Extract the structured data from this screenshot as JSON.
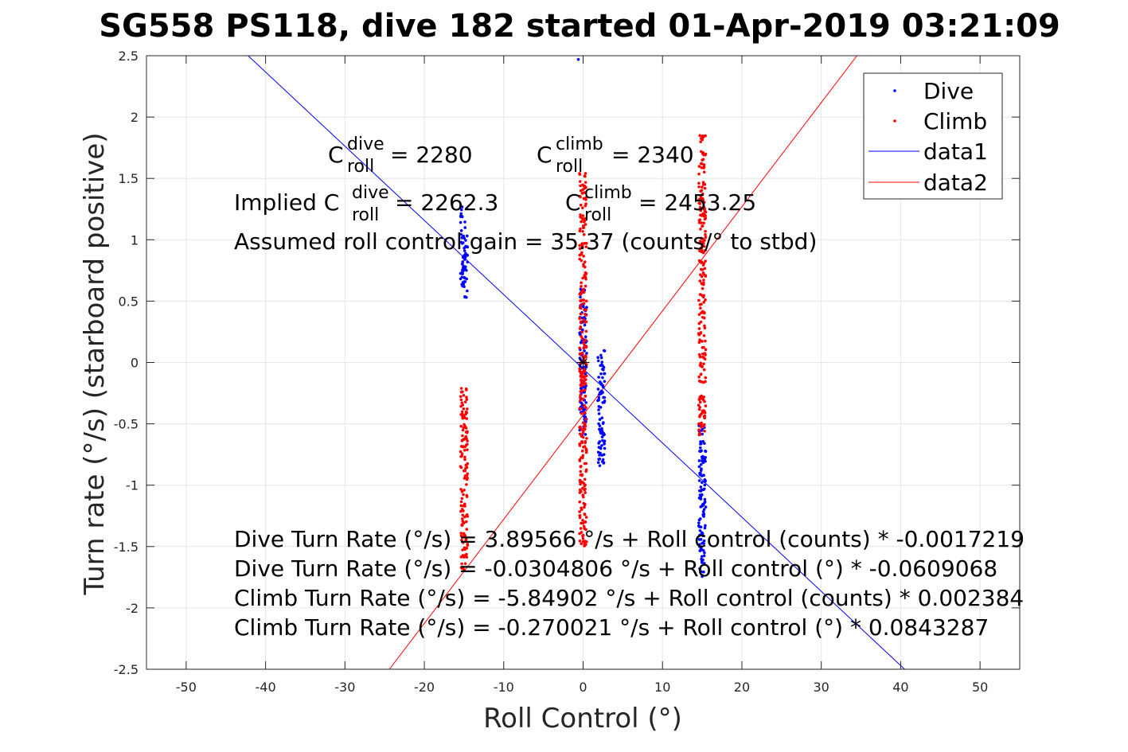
{
  "chart_data": {
    "type": "scatter",
    "title": "SG558 PS118, dive 182 started 01-Apr-2019 03:21:09",
    "xlabel": "Roll Control (°)",
    "ylabel": "Turn rate (°/s) (starboard positive)",
    "xlim": [
      -55,
      55
    ],
    "ylim": [
      -2.5,
      2.5
    ],
    "xticks": [
      "-50",
      "-40",
      "-30",
      "-20",
      "-10",
      "0",
      "10",
      "20",
      "30",
      "40",
      "50"
    ],
    "yticks": [
      "2.5",
      "2",
      "1.5",
      "1",
      "0.5",
      "0",
      "-0.5",
      "-1",
      "-1.5",
      "-2",
      "-2.5"
    ],
    "grid": true,
    "legend": {
      "placement": "top-right",
      "entries": [
        "Dive",
        "Climb",
        "data1",
        "data2"
      ]
    },
    "colors": {
      "dive": "#0000ff",
      "climb": "#ff0000",
      "axis": "#262626",
      "grid": "#e6e6e6"
    },
    "series": [
      {
        "name": "Dive",
        "kind": "points",
        "clusters": [
          {
            "x": -15,
            "y_min": 0.5,
            "y_max": 1.28
          },
          {
            "x": 0,
            "y_min": -0.6,
            "y_max": 0.6
          },
          {
            "x": 2.3,
            "y_min": -0.85,
            "y_max": 0.1
          },
          {
            "x": 15,
            "y_min": -1.75,
            "y_max": -0.5
          }
        ],
        "outliers": [
          [
            -0.6,
            2.47
          ]
        ]
      },
      {
        "name": "Climb",
        "kind": "points",
        "clusters": [
          {
            "x": -15,
            "y_min": -1.7,
            "y_max": -0.2
          },
          {
            "x": 0,
            "y_min": -1.5,
            "y_max": 1.55
          },
          {
            "x": 15,
            "y_min": -0.6,
            "y_max": 1.85
          }
        ]
      },
      {
        "name": "data1",
        "kind": "line",
        "x": [
          -42.2,
          40.5
        ],
        "y": [
          2.5,
          -2.5
        ]
      },
      {
        "name": "data2",
        "kind": "line",
        "x": [
          -24.4,
          34.5
        ],
        "y": [
          -2.5,
          2.5
        ]
      }
    ],
    "marker": {
      "x": 0,
      "y": 0
    },
    "annotations": {
      "c_dive_label": "C",
      "c_dive_sup": "dive",
      "c_dive_sub": "roll",
      "c_dive_value": " = 2280",
      "c_climb_label": "C",
      "c_climb_sup": "climb",
      "c_climb_sub": "roll",
      "c_climb_value": " = 2340",
      "implied_prefix": "Implied C",
      "implied_dive_sup": "dive",
      "implied_dive_sub": "roll",
      "implied_dive_value": " = 2262.3",
      "implied_climb_label": "C",
      "implied_climb_sup": "climb",
      "implied_climb_sub": "roll",
      "implied_climb_value": " = 2453.25",
      "gain": "Assumed roll control gain = 35.37 (counts/° to stbd)",
      "eq1": "Dive Turn Rate (°/s) = 3.89566 °/s + Roll control (counts) * -0.0017219",
      "eq2": "Dive Turn Rate (°/s) = -0.0304806 °/s + Roll control (°) * -0.0609068",
      "eq3": "Climb Turn Rate (°/s) = -5.84902 °/s + Roll control (counts) * 0.002384",
      "eq4": "Climb Turn Rate (°/s) = -0.270021 °/s + Roll control (°) * 0.0843287"
    }
  }
}
